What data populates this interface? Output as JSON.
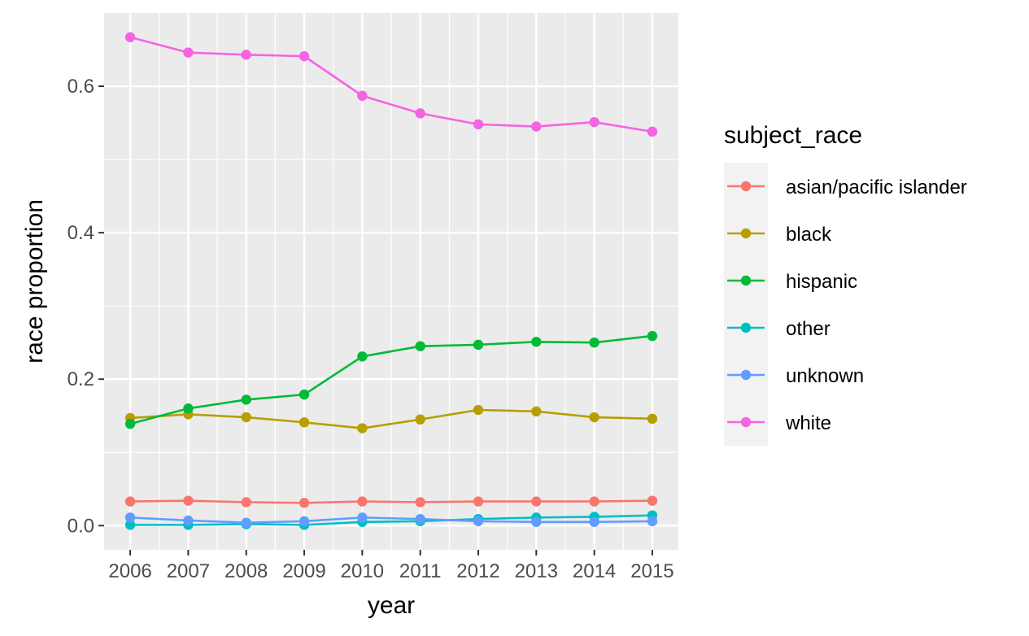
{
  "chart_data": {
    "type": "line",
    "title": "",
    "xlabel": "year",
    "ylabel": "race proportion",
    "x": [
      2006,
      2007,
      2008,
      2009,
      2010,
      2011,
      2012,
      2013,
      2014,
      2015
    ],
    "x_tick_labels": [
      "2006",
      "2007",
      "2008",
      "2009",
      "2010",
      "2011",
      "2012",
      "2013",
      "2014",
      "2015"
    ],
    "y_ticks": [
      0.0,
      0.2,
      0.4,
      0.6
    ],
    "y_tick_labels": [
      "0.0",
      "0.2",
      "0.4",
      "0.6"
    ],
    "ylim": [
      -0.033,
      0.7
    ],
    "grid": true,
    "legend": {
      "title": "subject_race",
      "position": "right"
    },
    "series": [
      {
        "name": "asian/pacific islander",
        "color": "#F8766D",
        "values": [
          0.033,
          0.034,
          0.032,
          0.031,
          0.033,
          0.032,
          0.033,
          0.033,
          0.033,
          0.034
        ]
      },
      {
        "name": "black",
        "color": "#B79F00",
        "values": [
          0.147,
          0.152,
          0.148,
          0.141,
          0.133,
          0.145,
          0.158,
          0.156,
          0.148,
          0.146
        ]
      },
      {
        "name": "hispanic",
        "color": "#00BA38",
        "values": [
          0.139,
          0.16,
          0.172,
          0.179,
          0.231,
          0.245,
          0.247,
          0.251,
          0.25,
          0.259
        ]
      },
      {
        "name": "other",
        "color": "#00BFC4",
        "values": [
          0.001,
          0.001,
          0.002,
          0.001,
          0.005,
          0.006,
          0.009,
          0.011,
          0.012,
          0.014
        ]
      },
      {
        "name": "unknown",
        "color": "#619CFF",
        "values": [
          0.011,
          0.007,
          0.004,
          0.006,
          0.011,
          0.009,
          0.006,
          0.005,
          0.005,
          0.006
        ]
      },
      {
        "name": "white",
        "color": "#F564E3",
        "values": [
          0.667,
          0.646,
          0.643,
          0.641,
          0.587,
          0.563,
          0.548,
          0.545,
          0.551,
          0.538
        ]
      }
    ]
  }
}
